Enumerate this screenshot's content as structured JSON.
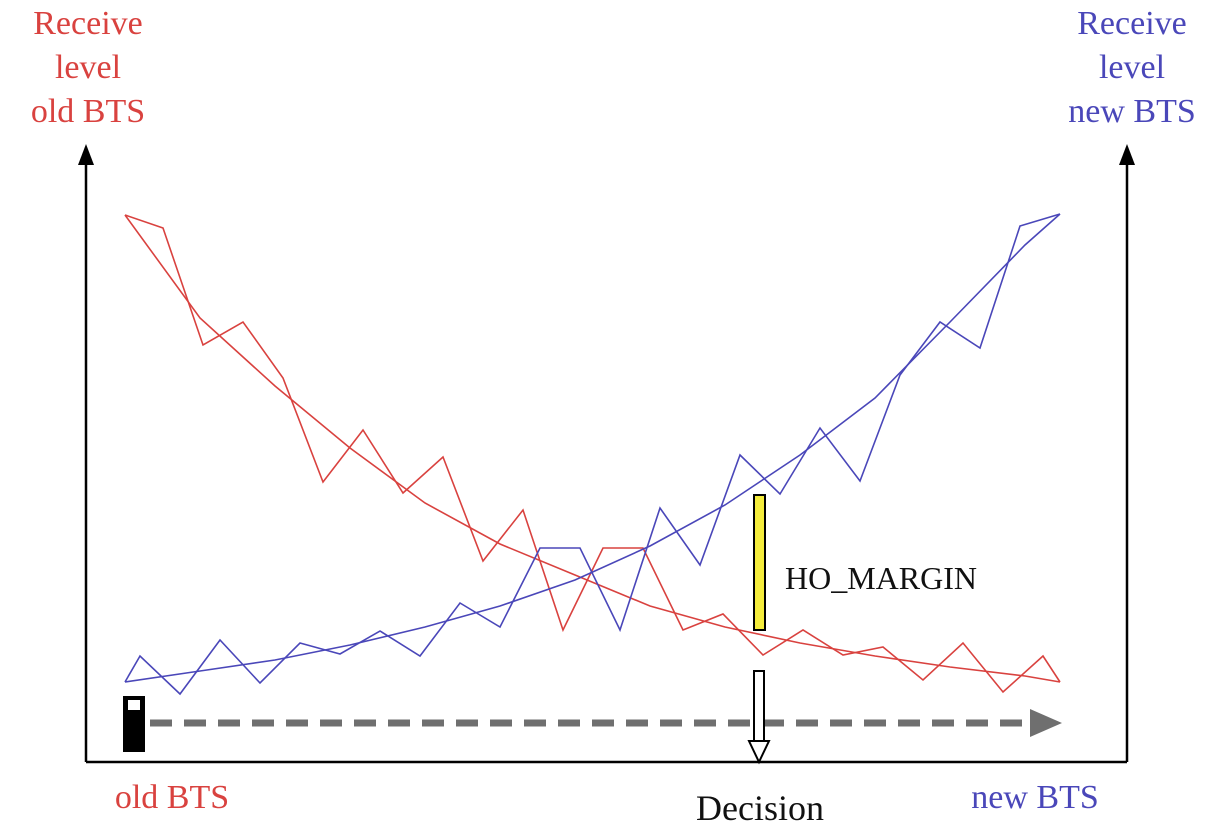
{
  "labels": {
    "left_axis": [
      "Receive",
      "level",
      "old BTS"
    ],
    "right_axis": [
      "Receive",
      "level",
      "new BTS"
    ],
    "old_bts": "old BTS",
    "new_bts": "new BTS",
    "decision": "Decision",
    "ho_margin": "HO_MARGIN"
  },
  "colors": {
    "old_bts": "#d9423f",
    "new_bts": "#4a47b9",
    "axis": "#000000",
    "margin_bar": "#f4ec3c",
    "movement_arrow": "#6f6f6f"
  },
  "icons": {
    "phone": "mobile-phone-icon",
    "decision_arrow": "down-arrow-icon"
  }
}
